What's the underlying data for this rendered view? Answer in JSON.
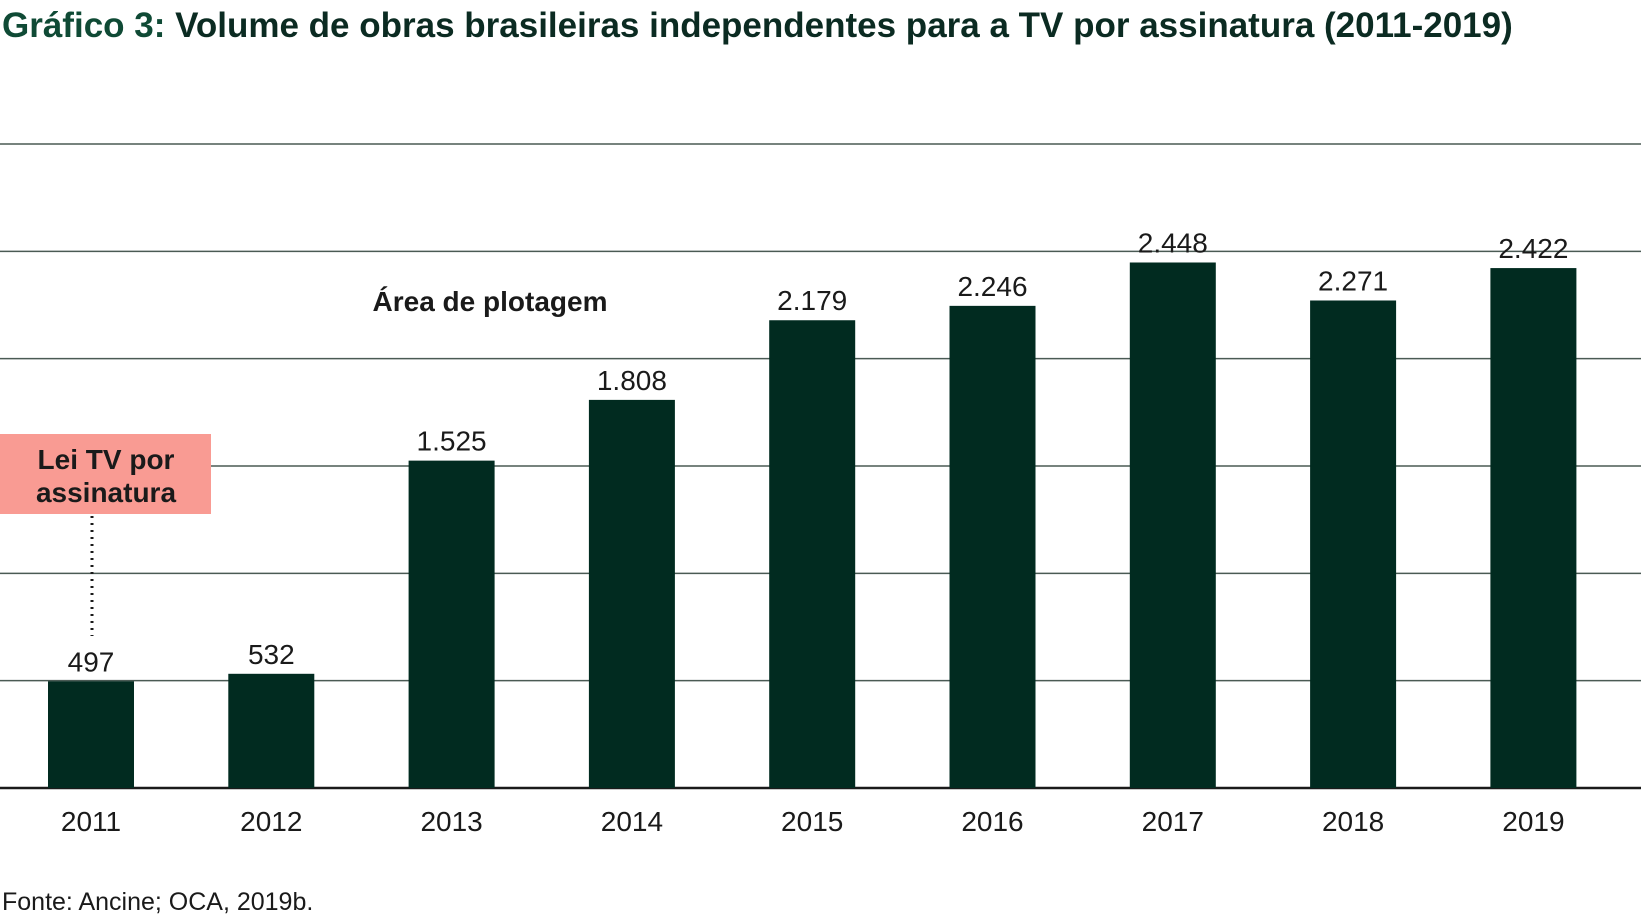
{
  "title_lead": "Gráfico 3:",
  "title_rest": " Volume de obras brasileiras independentes para a TV por assinatura (2011-2019)",
  "source": "Fonte: Ancine; OCA, 2019b.",
  "plot_area_label": "Área de plotagem",
  "annotation": {
    "text_line1": "Lei TV por",
    "text_line2": "assinatura",
    "anchor_category": "2011",
    "color": "#f99b93"
  },
  "colors": {
    "bar": "#012b20",
    "gridline": "#4a5a54",
    "title_lead": "#0f4a35"
  },
  "chart_data": {
    "type": "bar",
    "categories": [
      "2011",
      "2012",
      "2013",
      "2014",
      "2015",
      "2016",
      "2017",
      "2018",
      "2019"
    ],
    "values": [
      497,
      532,
      1525,
      1808,
      2179,
      2246,
      2448,
      2271,
      2422
    ],
    "value_labels": [
      "497",
      "532",
      "1.525",
      "1.808",
      "2.179",
      "2.246",
      "2.448",
      "2.271",
      "2.422"
    ],
    "ylim": [
      0,
      3000
    ],
    "grid": true,
    "legend": "none"
  }
}
